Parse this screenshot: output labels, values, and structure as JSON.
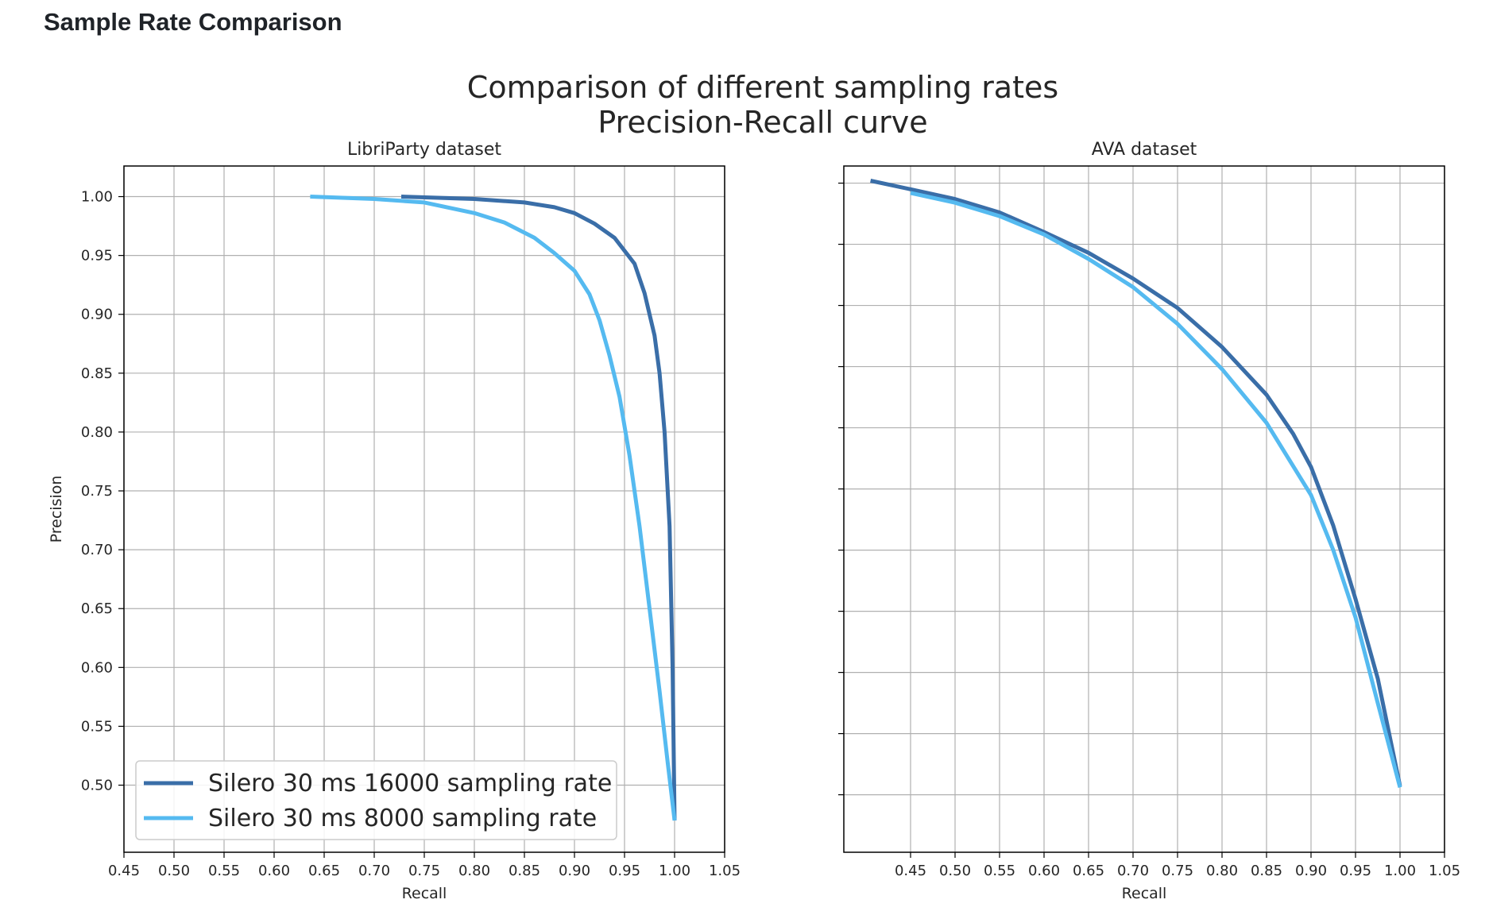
{
  "page": {
    "heading": "Sample Rate Comparison"
  },
  "figure": {
    "suptitle_line1": "Comparison of different sampling rates",
    "suptitle_line2": "Precision-Recall curve"
  },
  "colors": {
    "series_16000": "#3a6ea8",
    "series_8000": "#55baf0",
    "grid": "#b0b0b0",
    "axis": "#000000"
  },
  "chart_data": [
    {
      "type": "line",
      "title": "LibriParty dataset",
      "xlabel": "Recall",
      "ylabel": "Precision",
      "xlim": [
        0.45,
        1.05
      ],
      "ylim": [
        0.443,
        1.026
      ],
      "xticks": [
        0.45,
        0.5,
        0.55,
        0.6,
        0.65,
        0.7,
        0.75,
        0.8,
        0.85,
        0.9,
        0.95,
        1.0,
        1.05
      ],
      "xtick_labels": [
        "0.45",
        "0.50",
        "0.55",
        "0.60",
        "0.65",
        "0.70",
        "0.75",
        "0.80",
        "0.85",
        "0.90",
        "0.95",
        "1.00",
        "1.05"
      ],
      "yticks": [
        0.5,
        0.55,
        0.6,
        0.65,
        0.7,
        0.75,
        0.8,
        0.85,
        0.9,
        0.95,
        1.0
      ],
      "ytick_labels": [
        "0.50",
        "0.55",
        "0.60",
        "0.65",
        "0.70",
        "0.75",
        "0.80",
        "0.85",
        "0.90",
        "0.95",
        "1.00"
      ],
      "grid": true,
      "legend": "lower-left",
      "series": [
        {
          "name": "Silero 30 ms 16000 sampling rate",
          "color": "#3a6ea8",
          "x": [
            0.727,
            0.8,
            0.85,
            0.88,
            0.9,
            0.92,
            0.94,
            0.96,
            0.97,
            0.98,
            0.985,
            0.99,
            0.995,
            0.998,
            1.0
          ],
          "y": [
            1.0,
            0.998,
            0.995,
            0.991,
            0.986,
            0.977,
            0.965,
            0.943,
            0.918,
            0.882,
            0.85,
            0.8,
            0.72,
            0.6,
            0.47
          ]
        },
        {
          "name": "Silero 30 ms 8000 sampling rate",
          "color": "#55baf0",
          "x": [
            0.636,
            0.7,
            0.75,
            0.8,
            0.83,
            0.86,
            0.88,
            0.9,
            0.915,
            0.925,
            0.935,
            0.945,
            0.955,
            0.965,
            0.975,
            0.985,
            0.993,
            1.0
          ],
          "y": [
            1.0,
            0.998,
            0.995,
            0.986,
            0.978,
            0.965,
            0.952,
            0.937,
            0.917,
            0.895,
            0.865,
            0.83,
            0.78,
            0.72,
            0.65,
            0.58,
            0.52,
            0.47
          ]
        }
      ]
    },
    {
      "type": "line",
      "title": "AVA dataset",
      "xlabel": "Recall",
      "xlim": [
        0.375,
        1.05
      ],
      "ylim": [
        0.453,
        1.014
      ],
      "xticks": [
        0.45,
        0.5,
        0.55,
        0.6,
        0.65,
        0.7,
        0.75,
        0.8,
        0.85,
        0.9,
        0.95,
        1.0,
        1.05
      ],
      "xtick_labels": [
        "0.45",
        "0.50",
        "0.55",
        "0.60",
        "0.65",
        "0.70",
        "0.75",
        "0.80",
        "0.85",
        "0.90",
        "0.95",
        "1.00",
        "1.05"
      ],
      "yticks": [
        0.5,
        0.55,
        0.6,
        0.65,
        0.7,
        0.75,
        0.8,
        0.85,
        0.9,
        0.95,
        1.0
      ],
      "ytick_labels": [],
      "grid": true,
      "series": [
        {
          "name": "Silero 30 ms 16000 sampling rate",
          "color": "#3a6ea8",
          "x": [
            0.405,
            0.45,
            0.5,
            0.55,
            0.6,
            0.65,
            0.7,
            0.75,
            0.8,
            0.85,
            0.88,
            0.9,
            0.925,
            0.95,
            0.975,
            1.0
          ],
          "y": [
            1.002,
            0.995,
            0.987,
            0.976,
            0.96,
            0.943,
            0.922,
            0.898,
            0.866,
            0.827,
            0.795,
            0.768,
            0.72,
            0.66,
            0.595,
            0.507
          ]
        },
        {
          "name": "Silero 30 ms 8000 sampling rate",
          "color": "#55baf0",
          "x": [
            0.45,
            0.5,
            0.55,
            0.6,
            0.65,
            0.7,
            0.75,
            0.8,
            0.85,
            0.9,
            0.925,
            0.95,
            0.975,
            1.0
          ],
          "y": [
            0.992,
            0.984,
            0.973,
            0.958,
            0.938,
            0.915,
            0.885,
            0.848,
            0.804,
            0.745,
            0.7,
            0.645,
            0.575,
            0.506
          ]
        }
      ]
    }
  ]
}
